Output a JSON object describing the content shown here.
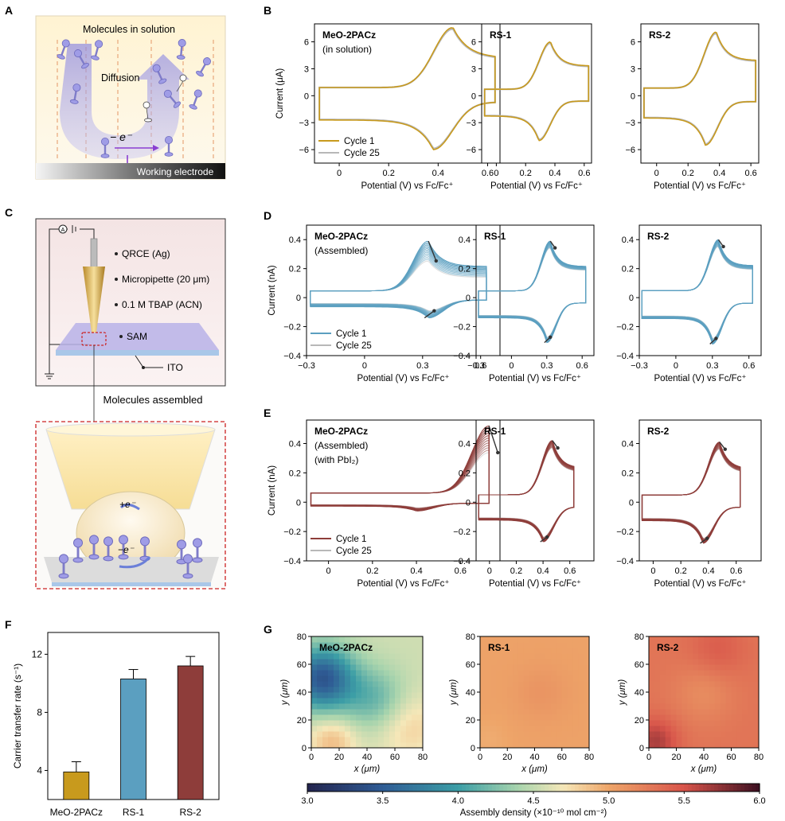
{
  "panels": {
    "a": "A",
    "b": "B",
    "c": "C",
    "d": "D",
    "e": "E",
    "f": "F",
    "g": "G"
  },
  "colors": {
    "gold": "#c89a1d",
    "gray": "#b8b8b8",
    "blue": "#5b9fc0",
    "red": "#8e3d3a",
    "arrow": "#333333",
    "violet": "#7b78d8"
  },
  "panelA": {
    "title": "Molecules in solution",
    "diffusion": "Diffusion",
    "electron_transfer": "− e⁻",
    "electrode": "Working electrode"
  },
  "panelC": {
    "meter": "A",
    "labels": [
      "QRCE (Ag)",
      "Micropipette (20 μm)",
      "0.1 M TBAP (ACN)",
      "SAM",
      "ITO"
    ],
    "caption": "Molecules assembled",
    "plus_e": "+e⁻",
    "minus_e": "−e⁻"
  },
  "common": {
    "xlabel": "Potential (V) vs Fc/Fc⁺",
    "legend": [
      "Cycle 1",
      "Cycle 25"
    ]
  },
  "panelB": {
    "ylabel": "Current (μA)",
    "titles": [
      [
        "MeO-2PACz",
        "(in solution)"
      ],
      [
        "RS-1"
      ],
      [
        "RS-2"
      ]
    ]
  },
  "panelD": {
    "ylabel": "Current (nA)",
    "titles": [
      [
        "MeO-2PACz",
        "(Assembled)"
      ],
      [
        "RS-1"
      ],
      [
        "RS-2"
      ]
    ]
  },
  "panelE": {
    "ylabel": "Current (nA)",
    "titles": [
      [
        "MeO-2PACz",
        "(Assembled)",
        "(with PbI₂)"
      ],
      [
        "RS-1"
      ],
      [
        "RS-2"
      ]
    ]
  },
  "panelG": {
    "titles": [
      "MeO-2PACz",
      "RS-1",
      "RS-2"
    ],
    "ylabel": "y (μm)",
    "xlabel": "x (μm)",
    "colorbar_label": "Assembly density (×10⁻¹⁰ mol cm⁻²)"
  },
  "chart_data": [
    {
      "type": "line",
      "id": "B1",
      "title": "MeO-2PACz (in solution)",
      "xlabel": "Potential (V) vs Fc/Fc+",
      "ylabel": "Current (μA)",
      "xlim": [
        -0.1,
        0.65
      ],
      "ylim": [
        -7.5,
        8
      ],
      "xticks": [
        0.0,
        0.2,
        0.4,
        0.6
      ],
      "yticks": [
        -6,
        -3,
        0,
        3,
        6
      ],
      "cv": {
        "start": -0.08,
        "vertex": 0.63,
        "ipa": 7.6,
        "epa": 0.46,
        "ipc": -6.0,
        "epc": 0.38
      },
      "series": [
        "Cycle 1",
        "Cycle 25"
      ]
    },
    {
      "type": "line",
      "id": "B2",
      "title": "RS-1",
      "xlabel": "Potential (V) vs Fc/Fc+",
      "ylim": [
        -7.5,
        8
      ],
      "xlim": [
        -0.1,
        0.65
      ],
      "xticks": [
        0.0,
        0.2,
        0.4,
        0.6
      ],
      "yticks": [
        -6,
        -3,
        0,
        3,
        6
      ],
      "cv": {
        "start": -0.08,
        "vertex": 0.63,
        "ipa": 6.0,
        "epa": 0.37,
        "ipc": -5.0,
        "epc": 0.29
      }
    },
    {
      "type": "line",
      "id": "B3",
      "title": "RS-2",
      "xlabel": "Potential (V) vs Fc/Fc+",
      "ylim": [
        -7.5,
        8
      ],
      "xlim": [
        -0.1,
        0.65
      ],
      "xticks": [
        0.0,
        0.2,
        0.4,
        0.6
      ],
      "yticks": [
        -6,
        -3,
        0,
        3,
        6
      ],
      "cv": {
        "start": -0.08,
        "vertex": 0.63,
        "ipa": 7.1,
        "epa": 0.38,
        "ipc": -5.5,
        "epc": 0.31
      }
    },
    {
      "type": "line",
      "id": "D1",
      "title": "MeO-2PACz (Assembled)",
      "xlabel": "Potential (V) vs Fc/Fc+",
      "ylabel": "Current (nA)",
      "xlim": [
        -0.3,
        0.7
      ],
      "ylim": [
        -0.4,
        0.5
      ],
      "xticks": [
        -0.3,
        0.0,
        0.3,
        0.6
      ],
      "yticks": [
        -0.4,
        -0.2,
        0.0,
        0.2,
        0.4
      ],
      "cv": {
        "start": -0.28,
        "vertex": 0.63,
        "ipa": 0.39,
        "epa": 0.33,
        "ipc": -0.14,
        "epc": 0.33,
        "decay": 0.35
      }
    },
    {
      "type": "line",
      "id": "D2",
      "title": "RS-1",
      "xlim": [
        -0.3,
        0.7
      ],
      "ylim": [
        -0.4,
        0.5
      ],
      "xticks": [
        -0.3,
        0.0,
        0.3,
        0.6
      ],
      "yticks": [
        -0.4,
        -0.2,
        0.0,
        0.2,
        0.4
      ],
      "cv": {
        "start": -0.28,
        "vertex": 0.63,
        "ipa": 0.39,
        "epa": 0.33,
        "ipc": -0.31,
        "epc": 0.3,
        "decay": 0.12
      }
    },
    {
      "type": "line",
      "id": "D3",
      "title": "RS-2",
      "xlim": [
        -0.3,
        0.7
      ],
      "ylim": [
        -0.4,
        0.5
      ],
      "xticks": [
        -0.3,
        0.0,
        0.3,
        0.6
      ],
      "yticks": [
        -0.4,
        -0.2,
        0.0,
        0.2,
        0.4
      ],
      "cv": {
        "start": -0.28,
        "vertex": 0.63,
        "ipa": 0.4,
        "epa": 0.35,
        "ipc": -0.32,
        "epc": 0.3,
        "decay": 0.12
      }
    },
    {
      "type": "line",
      "id": "E1",
      "title": "MeO-2PACz (Assembled) (with PbI2)",
      "xlabel": "Potential (V) vs Fc/Fc+",
      "ylabel": "Current (nA)",
      "xlim": [
        -0.1,
        0.78
      ],
      "ylim": [
        -0.4,
        0.56
      ],
      "xticks": [
        0.0,
        0.2,
        0.4,
        0.6
      ],
      "yticks": [
        -0.4,
        -0.2,
        0.0,
        0.2,
        0.4
      ],
      "cv": {
        "start": -0.08,
        "vertex": 0.73,
        "ipa": 0.52,
        "epa": 0.73,
        "ipc": -0.06,
        "epc": 0.4,
        "decay": 0.35
      }
    },
    {
      "type": "line",
      "id": "E2",
      "title": "RS-1",
      "xlim": [
        -0.1,
        0.78
      ],
      "ylim": [
        -0.4,
        0.56
      ],
      "xticks": [
        0.0,
        0.2,
        0.4,
        0.6
      ],
      "yticks": [
        -0.4,
        -0.2,
        0.0,
        0.2,
        0.4
      ],
      "cv": {
        "start": -0.08,
        "vertex": 0.63,
        "ipa": 0.42,
        "epa": 0.47,
        "ipc": -0.27,
        "epc": 0.4,
        "decay": 0.12
      }
    },
    {
      "type": "line",
      "id": "E3",
      "title": "RS-2",
      "xlim": [
        -0.1,
        0.78
      ],
      "ylim": [
        -0.4,
        0.56
      ],
      "xticks": [
        0.0,
        0.2,
        0.4,
        0.6
      ],
      "yticks": [
        -0.4,
        -0.2,
        0.0,
        0.2,
        0.4
      ],
      "cv": {
        "start": -0.08,
        "vertex": 0.63,
        "ipa": 0.41,
        "epa": 0.48,
        "ipc": -0.28,
        "epc": 0.36,
        "decay": 0.12
      }
    },
    {
      "type": "bar",
      "id": "F",
      "ylabel": "Carrier transfer rate (s⁻¹)",
      "categories": [
        "MeO-2PACz",
        "RS-1",
        "RS-2"
      ],
      "values": [
        3.9,
        10.3,
        11.2
      ],
      "errors": [
        0.7,
        0.65,
        0.65
      ],
      "ylim": [
        2,
        13.5
      ],
      "yticks": [
        4,
        8,
        12
      ]
    },
    {
      "type": "heatmap",
      "id": "G1",
      "title": "MeO-2PACz",
      "xlim": [
        0,
        80
      ],
      "ylim": [
        0,
        80
      ],
      "xticks": [
        0,
        20,
        40,
        60,
        80
      ],
      "yticks": [
        0,
        20,
        40,
        60,
        80
      ],
      "range": [
        3.0,
        4.9
      ]
    },
    {
      "type": "heatmap",
      "id": "G2",
      "title": "RS-1",
      "xlim": [
        0,
        80
      ],
      "ylim": [
        0,
        80
      ],
      "xticks": [
        0,
        20,
        40,
        60,
        80
      ],
      "yticks": [
        0,
        20,
        40,
        60,
        80
      ],
      "range": [
        4.9,
        5.2
      ]
    },
    {
      "type": "heatmap",
      "id": "G3",
      "title": "RS-2",
      "xlim": [
        0,
        80
      ],
      "ylim": [
        0,
        80
      ],
      "xticks": [
        0,
        20,
        40,
        60,
        80
      ],
      "yticks": [
        0,
        20,
        40,
        60,
        80
      ],
      "range": [
        5.1,
        5.9
      ]
    },
    {
      "type": "heatmap",
      "id": "colorbar",
      "ticks": [
        3.0,
        3.5,
        4.0,
        4.5,
        5.0,
        5.5,
        6.0
      ],
      "range": [
        3.0,
        6.0
      ]
    }
  ]
}
